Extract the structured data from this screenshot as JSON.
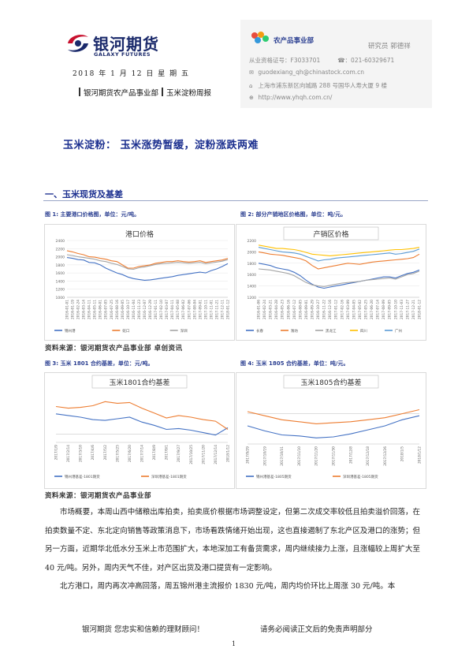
{
  "header": {
    "logo_cn": "银河期货",
    "logo_en": "GALAXY FUTURES",
    "date": "2018 年 1 月 12 日 星 期 五",
    "dept": "银河期货农产品事业部",
    "report": "玉米淀粉周报"
  },
  "contact": {
    "dept": "农产品事业部",
    "researcher": "研究员  郭德祥",
    "cert": "从业资格证号：F3033701",
    "phone": "☎：021-60329671",
    "email": "guodexiang_qh@chinastock.com.cn",
    "address": "上海市浦东新区向城路 288 号国华人寿大厦 9 楼",
    "web": "http://www.yhqh.com.cn/"
  },
  "title": "玉米淀粉：  玉米涨势暂缓，淀粉涨跌两难",
  "section": "一、玉米现货及基差",
  "figures": [
    {
      "caption": "图 1:   主要港口价格图，单位：元/吨。"
    },
    {
      "caption": "图 2:   部分产销地区价格图，单位：吨/元。"
    },
    {
      "caption": "图 3:   玉米 1801 合约基差，单位：元/吨。"
    },
    {
      "caption": "图 4:   玉米 1805 合约基差，单位：吨/元。"
    }
  ],
  "sources": {
    "top": "资料来源：银河期货农产品事业部  卓创资讯",
    "bottom": "资料来源：银河期货农产品事业部"
  },
  "paragraphs": [
    "市场概要，本周山西中储粮出库拍卖，拍卖底价根据市场调整设定，但第二次成交率较低且拍卖溢价回落，在拍卖数量不定、东北定向销售等政策消息下，市场看跌情绪开始出现，这也直接遏制了东北产区及港口的涨势；但另一方面，近期华北低水分玉米上市范围扩大，本地深加工有备货需求，周内继续接力上涨，且涨幅较上周扩大至 40 元/吨。另外，周内天气不佳，对产区出货及港口提货有一定影响。",
    "北方港口，周内再次冲高回落，周五锦州港主流报价 1830 元/吨，周内均价环比上周涨 30 元/吨。本"
  ],
  "footer": {
    "left": "银河期货  您忠实和信赖的理财顾问！",
    "right": "请务必阅读正文后的免责声明部分",
    "page": "1"
  },
  "chart_data": [
    {
      "type": "line",
      "title": "港口价格",
      "ylim": [
        1000,
        2400
      ],
      "yticks": [
        1000,
        1200,
        1400,
        1600,
        1800,
        2000,
        2200,
        2400
      ],
      "x": [
        "2016-01-01",
        "2016-01-19",
        "2016-02-24",
        "2016-03-14",
        "2016-04-11",
        "2016-05-11",
        "2016-06-01",
        "2016-07-05",
        "2016-07-25",
        "2016-08-16",
        "2016-09-05",
        "2016-10-17",
        "2016-11-04",
        "2016-11-23",
        "2016-12-07",
        "2016-12-29",
        "2017-01-11",
        "2017-02-10",
        "2017-03-07",
        "2017-04-11",
        "2017-05-08",
        "2017-06-02",
        "2017-07-06",
        "2017-08-04",
        "2017-09-01",
        "2017-10-11",
        "2017-11-01",
        "2017-11-21",
        "2017-12-11",
        "2018-01-12"
      ],
      "series": [
        {
          "name": "锦州港",
          "color": "#4472c4",
          "values": [
            1980,
            1960,
            1930,
            1920,
            1860,
            1850,
            1800,
            1720,
            1660,
            1600,
            1560,
            1500,
            1460,
            1440,
            1420,
            1430,
            1450,
            1470,
            1490,
            1510,
            1540,
            1560,
            1580,
            1600,
            1620,
            1600,
            1660,
            1700,
            1760,
            1830
          ]
        },
        {
          "name": "蛇口",
          "color": "#ed7d31",
          "values": [
            2150,
            2120,
            2080,
            2050,
            2000,
            1990,
            1960,
            1940,
            1900,
            1880,
            1800,
            1720,
            1720,
            1760,
            1780,
            1800,
            1840,
            1860,
            1880,
            1880,
            1900,
            1880,
            1870,
            1880,
            1900,
            1860,
            1880,
            1900,
            1920,
            1960
          ]
        },
        {
          "name": "深圳",
          "color": "#a5a5a5",
          "values": [
            2050,
            2030,
            2000,
            1980,
            1960,
            1940,
            1900,
            1880,
            1840,
            1810,
            1760,
            1700,
            1690,
            1730,
            1750,
            1780,
            1810,
            1830,
            1840,
            1850,
            1860,
            1850,
            1840,
            1850,
            1860,
            1830,
            1850,
            1870,
            1890,
            1930
          ]
        }
      ]
    },
    {
      "type": "line",
      "title": "产销区价格",
      "ylim": [
        1200,
        2200
      ],
      "yticks": [
        1200,
        1400,
        1600,
        1800,
        2000,
        2200
      ],
      "x": [
        "2016-01-06",
        "2016-02-24",
        "2016-03-21",
        "2016-04-28",
        "2016-05-23",
        "2016-06-16",
        "2016-07-12",
        "2016-08-05",
        "2016-09-01",
        "2016-09-29",
        "2016-10-27",
        "2016-11-22",
        "2016-12-16",
        "2017-01-12",
        "2017-02-16",
        "2017-03-09",
        "2017-04-05",
        "2017-05-02",
        "2017-05-25",
        "2017-06-20",
        "2017-07-14",
        "2017-08-09",
        "2017-09-05",
        "2017-10-10",
        "2017-11-03",
        "2017-11-27",
        "2017-12-21",
        "2018-01-12"
      ],
      "series": [
        {
          "name": "长春",
          "color": "#4472c4",
          "values": [
            1800,
            1780,
            1760,
            1720,
            1700,
            1680,
            1640,
            1580,
            1500,
            1430,
            1380,
            1360,
            1380,
            1400,
            1420,
            1440,
            1460,
            1480,
            1500,
            1520,
            1540,
            1560,
            1560,
            1540,
            1580,
            1620,
            1640,
            1680
          ]
        },
        {
          "name": "潍坊",
          "color": "#ed7d31",
          "values": [
            2000,
            1980,
            1960,
            1950,
            1940,
            1920,
            1900,
            1880,
            1840,
            1760,
            1700,
            1720,
            1740,
            1760,
            1780,
            1800,
            1790,
            1780,
            1800,
            1820,
            1830,
            1840,
            1850,
            1860,
            1870,
            1880,
            1900,
            1960
          ]
        },
        {
          "name": "黑龙江",
          "color": "#a5a5a5",
          "values": [
            1700,
            1690,
            1680,
            1660,
            1640,
            1620,
            1580,
            1520,
            1460,
            1420,
            1400,
            1390,
            1410,
            1430,
            1450,
            1460,
            1470,
            1480,
            1500,
            1510,
            1520,
            1530,
            1540,
            1520,
            1560,
            1600,
            1620,
            1660
          ]
        },
        {
          "name": "四川",
          "color": "#ffc000",
          "values": [
            2120,
            2100,
            2080,
            2060,
            2060,
            2050,
            2040,
            2020,
            1990,
            1960,
            1950,
            1940,
            1930,
            1940,
            1950,
            1960,
            1970,
            1980,
            1990,
            2000,
            2010,
            2020,
            2030,
            2040,
            2040,
            2050,
            2060,
            2080
          ]
        },
        {
          "name": "广州",
          "color": "#5b9bd5",
          "values": [
            2080,
            2060,
            2040,
            2020,
            2000,
            1990,
            1980,
            1960,
            1920,
            1880,
            1840,
            1860,
            1870,
            1890,
            1900,
            1910,
            1920,
            1930,
            1940,
            1950,
            1960,
            1970,
            1980,
            1960,
            1970,
            1990,
            2010,
            2050
          ]
        }
      ]
    },
    {
      "type": "line",
      "title": "玉米1801合约基差",
      "ylim": [
        -100,
        500
      ],
      "x": [
        "2017/1/9",
        "2017/2/14",
        "2017/3/10",
        "2017/4/6",
        "2017/5/2",
        "2017/5/25",
        "2017/6/20",
        "2017/7/14",
        "2017/8/9",
        "2017/9/1",
        "2017/9/27",
        "2017/10/25",
        "2017/11/20",
        "2017/12/14",
        "2018/1/12"
      ],
      "series": [
        {
          "name": "锦州港基差-1801期货",
          "color": "#4472c4",
          "values": [
            250,
            230,
            210,
            180,
            170,
            190,
            210,
            150,
            110,
            60,
            70,
            50,
            20,
            -10,
            80
          ]
        },
        {
          "name": "深圳港基差-1801期货",
          "color": "#ed7d31",
          "values": [
            340,
            320,
            330,
            350,
            400,
            380,
            390,
            320,
            260,
            200,
            230,
            210,
            180,
            160,
            60
          ]
        }
      ]
    },
    {
      "type": "line",
      "title": "玉米1805合约基差",
      "ylim": [
        -300,
        200
      ],
      "x": [
        "2017/9/29",
        "2017/10/19",
        "2017/10/31",
        "2017/11/10",
        "2017/11/20",
        "2017/11/30",
        "2017/12/8",
        "2017/12/18",
        "2017/12/26",
        "2018/1/5",
        "2018/1/12"
      ],
      "series": [
        {
          "name": "锦州港基差-1805期货",
          "color": "#4472c4",
          "values": [
            -120,
            -170,
            -210,
            -220,
            -240,
            -230,
            -200,
            -160,
            -120,
            -60,
            -20
          ]
        },
        {
          "name": "深圳港基差-1805期货",
          "color": "#ed7d31",
          "values": [
            20,
            -20,
            -60,
            -80,
            -100,
            -90,
            -80,
            -60,
            -40,
            0,
            40
          ]
        }
      ]
    }
  ]
}
